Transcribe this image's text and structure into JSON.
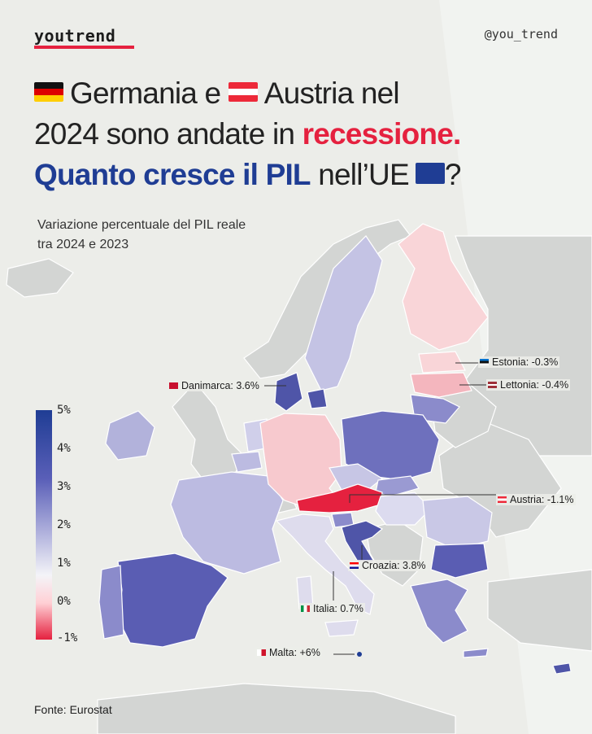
{
  "header": {
    "brand": "youtrend",
    "handle": "@you_trend"
  },
  "title": {
    "line1_a": "Germania e",
    "line1_b": "Austria nel",
    "line2_a": "2024 sono andate in ",
    "line2_highlight": "recessione.",
    "line3_highlight": "Quanto cresce il PIL",
    "line3_b": " nell’UE",
    "line3_end": "?"
  },
  "subtitle": "Variazione percentuale del PIL reale tra 2024 e 2023",
  "legend": {
    "labels": [
      "5%",
      "4%",
      "3%",
      "2%",
      "1%",
      "0%",
      "-1%"
    ],
    "color_high": "#1f3d94",
    "color_zero": "#f4f4f8",
    "color_low": "#e5213f"
  },
  "callouts": {
    "estonia": "Estonia: -0.3%",
    "lettonia": "Lettonia: -0.4%",
    "danimarca": "Danimarca: 3.6%",
    "austria": "Austria: -1.1%",
    "croazia": "Croazia: 3.8%",
    "italia": "Italia: 0.7%",
    "malta": "Malta: +6%"
  },
  "map_data": {
    "countries": [
      {
        "name": "Danimarca",
        "gdp_change": 3.6
      },
      {
        "name": "Estonia",
        "gdp_change": -0.3
      },
      {
        "name": "Lettonia",
        "gdp_change": -0.4
      },
      {
        "name": "Austria",
        "gdp_change": -1.1
      },
      {
        "name": "Croazia",
        "gdp_change": 3.8
      },
      {
        "name": "Italia",
        "gdp_change": 0.7
      },
      {
        "name": "Malta",
        "gdp_change": 6
      }
    ]
  },
  "source": "Fonte: Eurostat"
}
